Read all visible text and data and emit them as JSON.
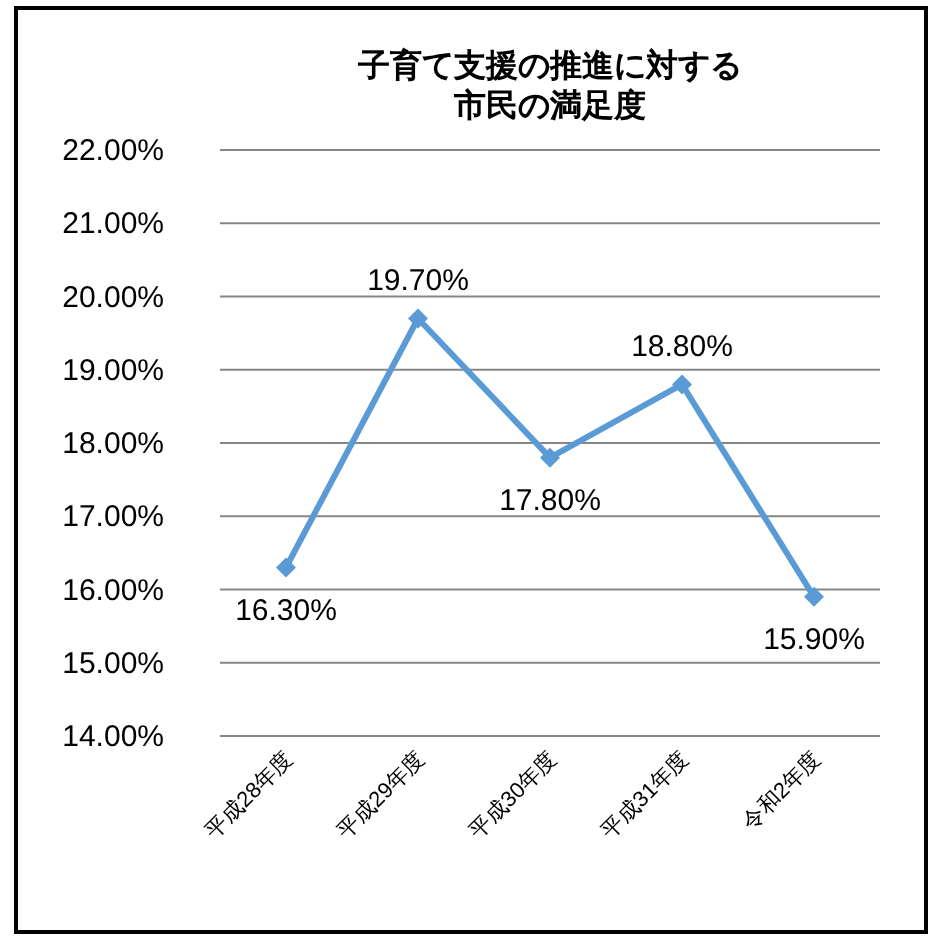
{
  "chart_data": {
    "type": "line",
    "title": "子育て支援の推進に対する市民の満足度",
    "categories": [
      "平成28年度",
      "平成29年度",
      "平成30年度",
      "平成31年度",
      "令和2年度"
    ],
    "series": [
      {
        "color": "#5b9bd5",
        "values": [
          16.3,
          19.7,
          17.8,
          18.8,
          15.9
        ],
        "value_labels": [
          "16.30%",
          "19.70%",
          "17.80%",
          "18.80%",
          "15.90%"
        ]
      }
    ],
    "ylim": [
      14,
      22
    ],
    "yticks": [
      {
        "value": 14,
        "label": "14.00%"
      },
      {
        "value": 15,
        "label": "15.00%"
      },
      {
        "value": 16,
        "label": "16.00%"
      },
      {
        "value": 17,
        "label": "17.00%"
      },
      {
        "value": 18,
        "label": "18.00%"
      },
      {
        "value": 19,
        "label": "19.00%"
      },
      {
        "value": 20,
        "label": "20.00%"
      },
      {
        "value": 21,
        "label": "21.00%"
      },
      {
        "value": 22,
        "label": "22.00%"
      }
    ],
    "grid": "y",
    "marker": "diamond",
    "line_style": "solid"
  }
}
